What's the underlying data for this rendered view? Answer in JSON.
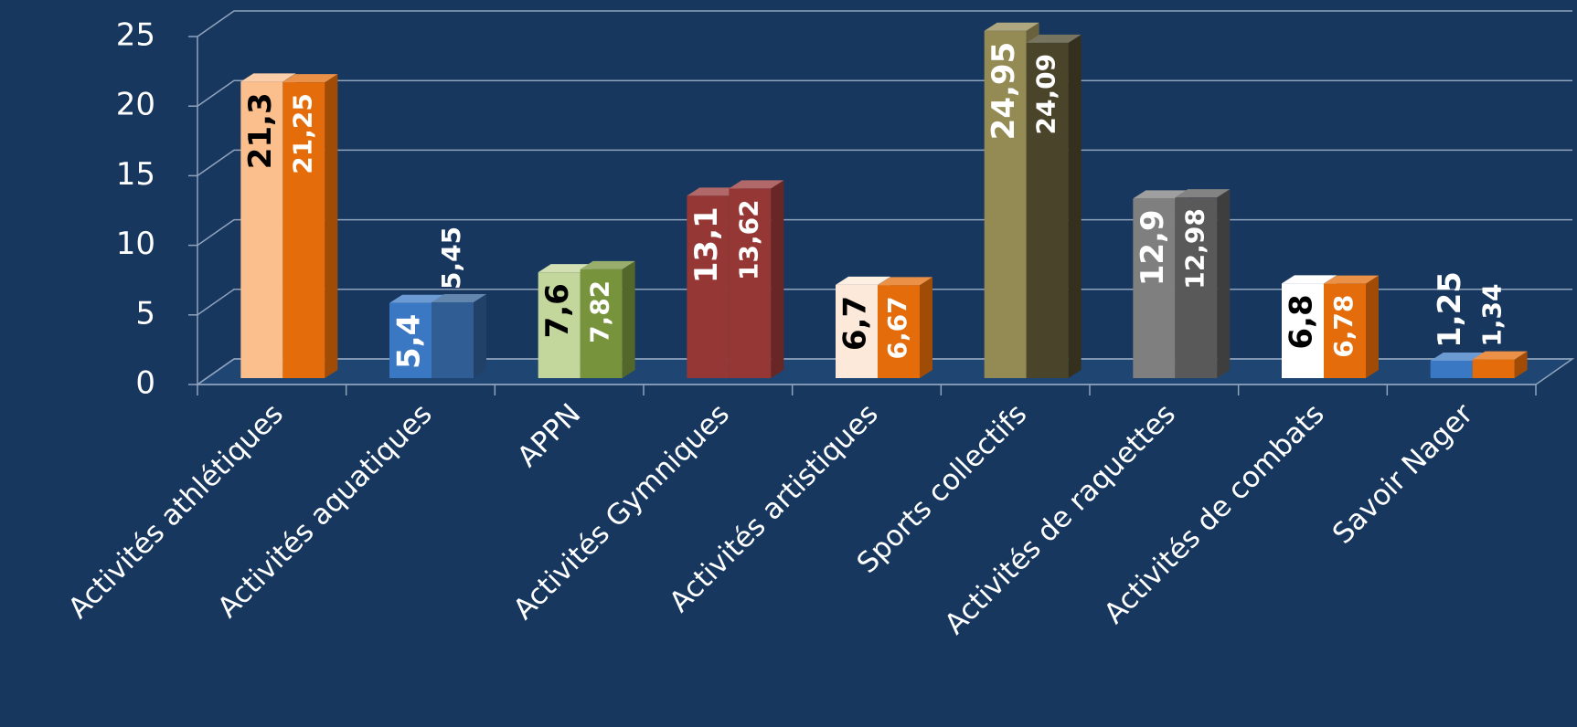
{
  "chart_data": {
    "type": "bar3d",
    "categories": [
      "Activités athlétiques",
      "Activités aquatiques",
      "APPN",
      "Activités Gymniques",
      "Activités artistiques",
      "Sports collectifs",
      "Activités de raquettes",
      "Activités de combats",
      "Savoir Nager"
    ],
    "series": [
      {
        "values": [
          21.3,
          5.4,
          7.6,
          13.1,
          6.7,
          24.95,
          12.9,
          6.8,
          1.25
        ],
        "value_labels": [
          "21,3",
          "5,4",
          "7,6",
          "13,1",
          "6,7",
          "24,95",
          "12,9",
          "6,8",
          "1,25"
        ],
        "colors": [
          "#fbbf8e",
          "#3b78c4",
          "#c3d69b",
          "#953735",
          "#fde9d9",
          "#948a54",
          "#7f7f7f",
          "#ffffff",
          "#3b78c4"
        ]
      },
      {
        "values": [
          21.25,
          5.45,
          7.82,
          13.62,
          6.67,
          24.09,
          12.98,
          6.78,
          1.34
        ],
        "value_labels": [
          "21,25",
          "5,45",
          "7,82",
          "13,62",
          "6,67",
          "24,09",
          "12,98",
          "6,78",
          "1,34"
        ],
        "colors": [
          "#e46c0a",
          "#2f5d94",
          "#77933c",
          "#953735",
          "#e46c0a",
          "#4a452a",
          "#595959",
          "#e46c0a",
          "#e46c0a"
        ]
      }
    ],
    "ylim": [
      0,
      25
    ],
    "yticks": [
      0,
      5,
      10,
      15,
      20,
      25
    ],
    "grid": true,
    "background": "#17375e"
  }
}
